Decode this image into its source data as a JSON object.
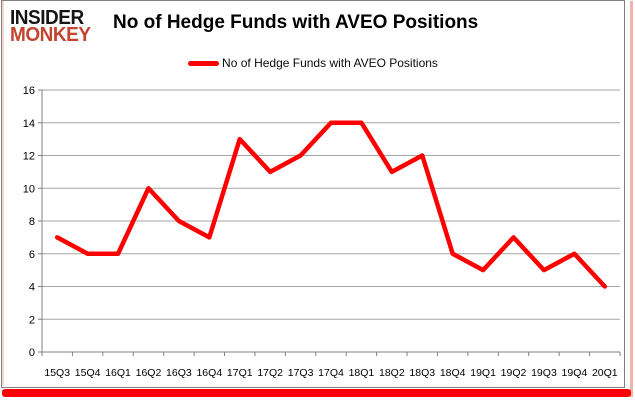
{
  "logo": {
    "line1": "INSIDER",
    "line2": "MONKEY"
  },
  "header": {
    "title": "No of Hedge Funds with AVEO Positions"
  },
  "legend": {
    "label": "No of Hedge Funds with AVEO Positions"
  },
  "colors": {
    "line": "#FE0000",
    "logo_black": "#161616",
    "logo_red": "#C2452F",
    "grid": "#A6A6A6",
    "axis": "#808080",
    "tick_label": "#000000",
    "accent_band": "#FB0005",
    "edge_pink": "#F2B3A9",
    "card_border": "#808080",
    "background": "#FFFFFF"
  },
  "chart_data": {
    "type": "line",
    "title": "No of Hedge Funds with AVEO Positions",
    "series_name": "No of Hedge Funds with AVEO Positions",
    "categories": [
      "15Q3",
      "15Q4",
      "16Q1",
      "16Q2",
      "16Q3",
      "16Q4",
      "17Q1",
      "17Q2",
      "17Q3",
      "17Q4",
      "18Q1",
      "18Q2",
      "18Q3",
      "18Q4",
      "19Q1",
      "19Q2",
      "19Q3",
      "19Q4",
      "20Q1"
    ],
    "values": [
      7,
      6,
      6,
      10,
      8,
      7,
      13,
      11,
      12,
      14,
      14,
      11,
      12,
      6,
      5,
      7,
      5,
      6,
      4
    ],
    "xlabel": "",
    "ylabel": "",
    "ylim": [
      0,
      16
    ],
    "ytick_step": 2,
    "grid": true,
    "legend_position": "top-center"
  }
}
